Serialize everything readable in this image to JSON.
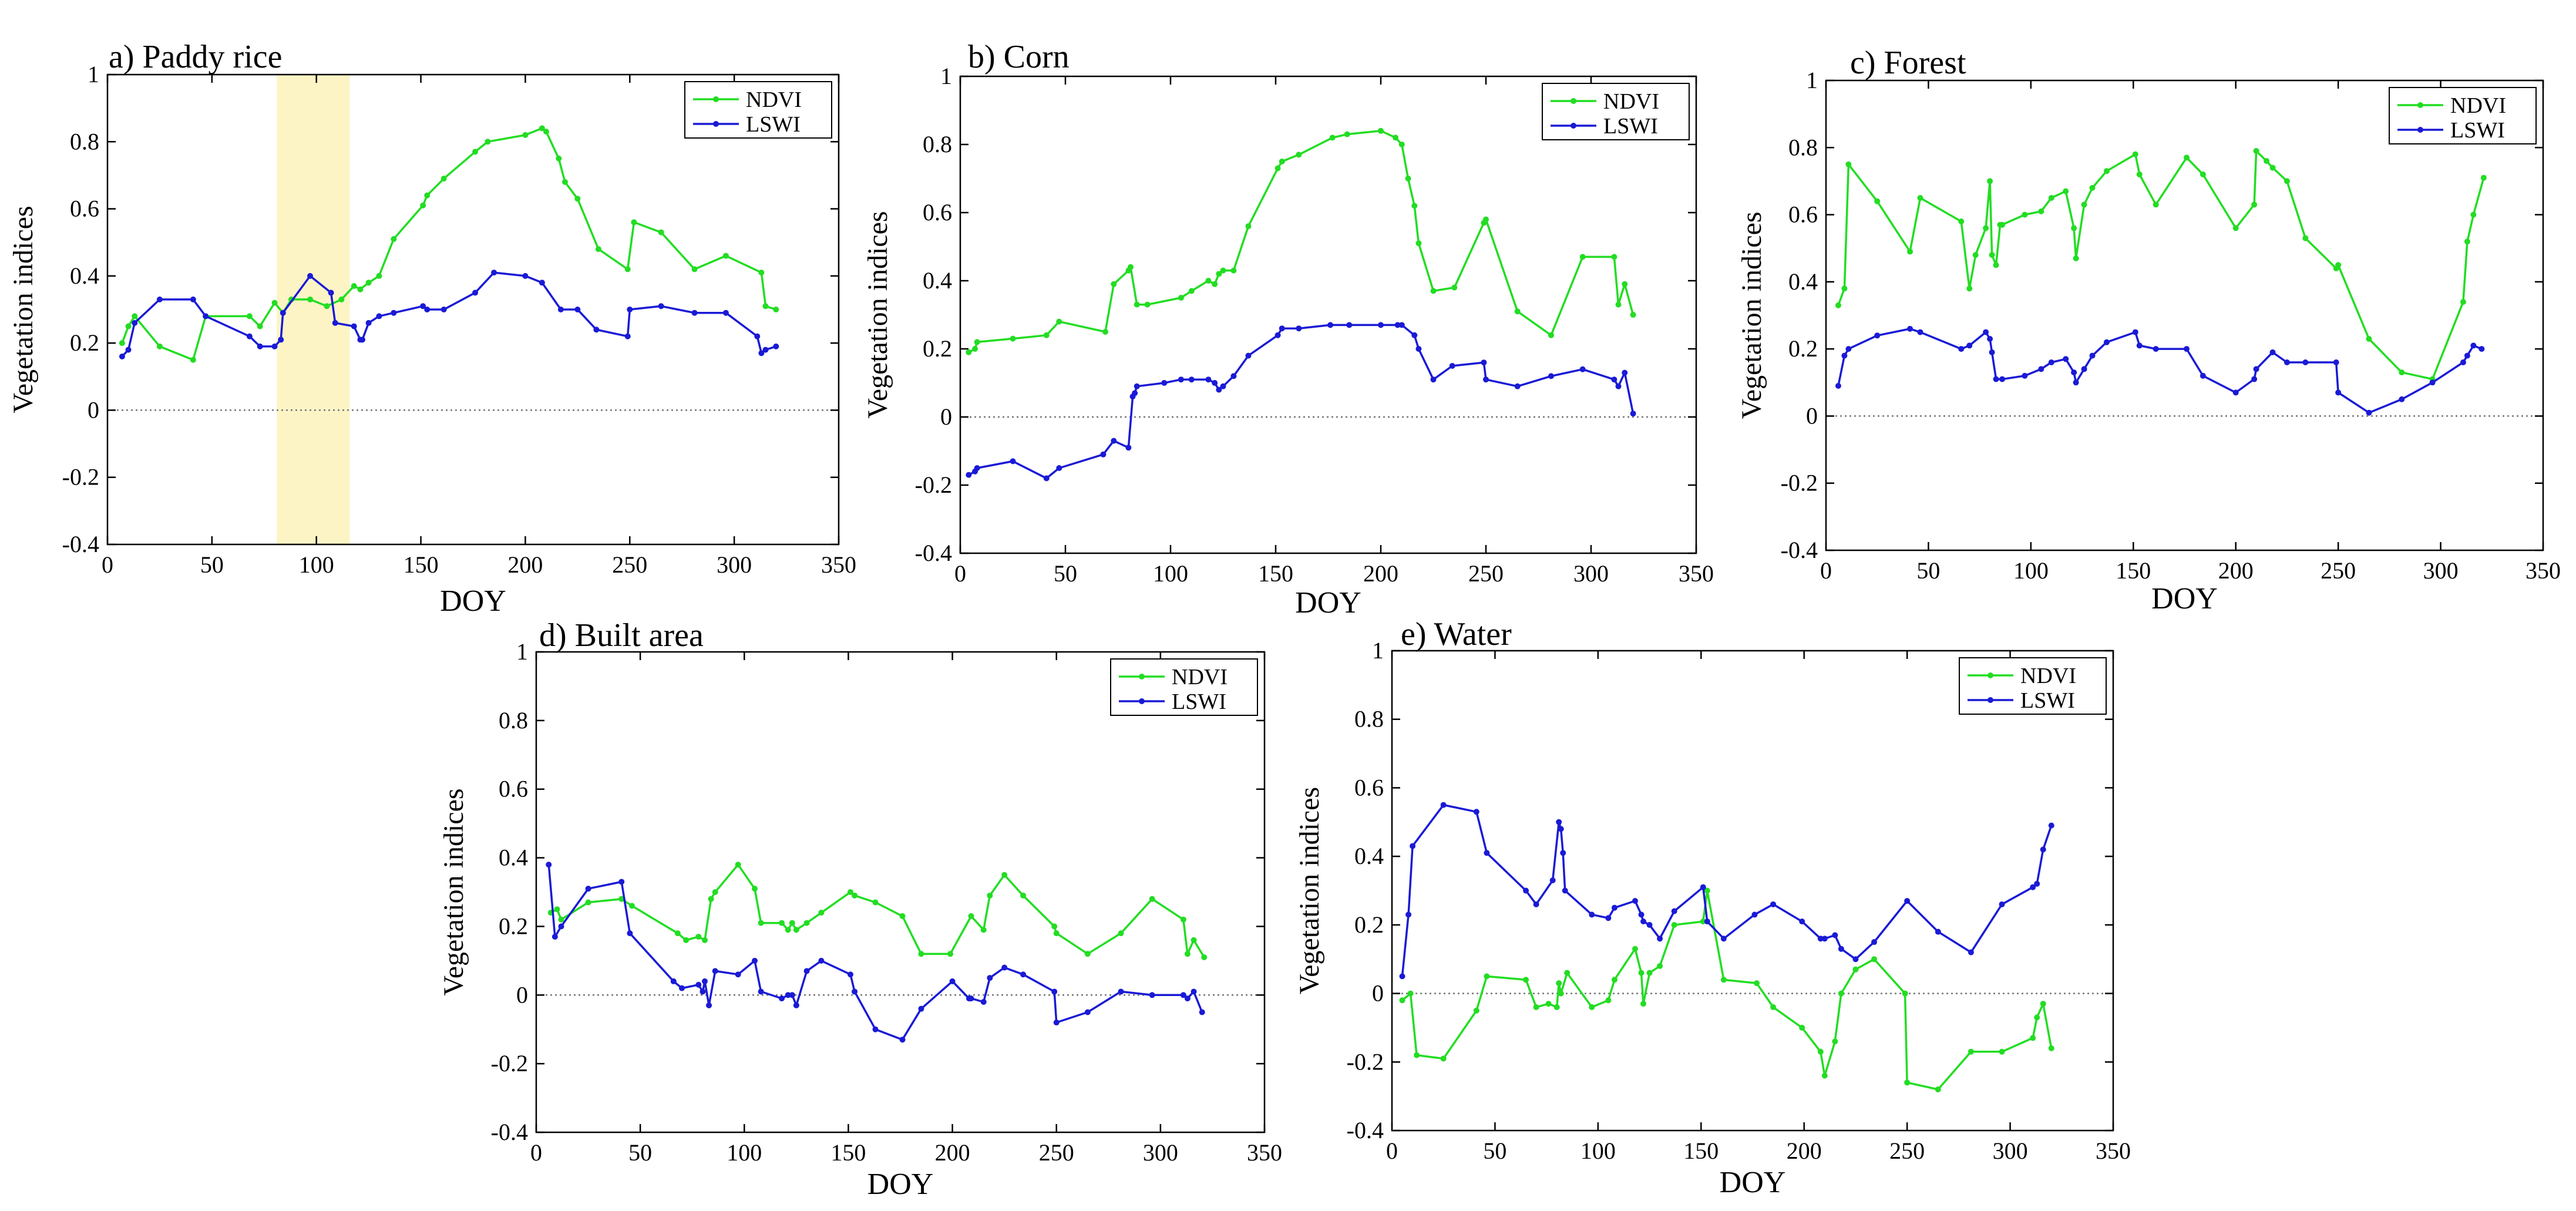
{
  "figure": {
    "colors": {
      "ndvi": "#22dd22",
      "lswi": "#1a1ad6",
      "shade": "#fdf4c6",
      "zero": "#777777"
    }
  },
  "chart_data": [
    {
      "id": "a",
      "type": "line",
      "title": "a) Paddy rice",
      "xlabel": "DOY",
      "ylabel": "Vegetation indices",
      "xlim": [
        0,
        350
      ],
      "ylim": [
        -0.4,
        1
      ],
      "xticks": [
        "0",
        "50",
        "100",
        "150",
        "200",
        "250",
        "300",
        "350"
      ],
      "yticks": [
        "-0.4",
        "-0.2",
        "0",
        "0.2",
        "0.4",
        "0.6",
        "0.8",
        "1"
      ],
      "legend": [
        "NDVI",
        "LSWI"
      ],
      "legend_position": "top-right",
      "highlight_x_range": [
        81,
        116
      ],
      "series": [
        {
          "name": "NDVI",
          "x": [
            7,
            10,
            13,
            25,
            41,
            47,
            68,
            73,
            80,
            84,
            88,
            97,
            105,
            112,
            118,
            121,
            125,
            130,
            137,
            151,
            153,
            161,
            176,
            182,
            200,
            208,
            210,
            216,
            219,
            225,
            235,
            249,
            252,
            265,
            281,
            296,
            313,
            315,
            320
          ],
          "y": [
            0.2,
            0.25,
            0.28,
            0.19,
            0.15,
            0.28,
            0.28,
            0.25,
            0.32,
            0.29,
            0.33,
            0.33,
            0.31,
            0.33,
            0.37,
            0.36,
            0.38,
            0.4,
            0.51,
            0.61,
            0.64,
            0.69,
            0.77,
            0.8,
            0.82,
            0.84,
            0.83,
            0.75,
            0.68,
            0.63,
            0.48,
            0.42,
            0.56,
            0.53,
            0.42,
            0.46,
            0.41,
            0.31,
            0.3
          ]
        },
        {
          "name": "LSWI",
          "x": [
            7,
            10,
            13,
            25,
            41,
            47,
            68,
            73,
            80,
            83,
            84,
            97,
            107,
            109,
            118,
            121,
            122,
            125,
            130,
            137,
            151,
            153,
            161,
            176,
            185,
            200,
            208,
            217,
            225,
            234,
            249,
            250,
            265,
            281,
            296,
            311,
            313,
            315,
            320
          ],
          "y": [
            0.16,
            0.18,
            0.26,
            0.33,
            0.33,
            0.28,
            0.22,
            0.19,
            0.19,
            0.21,
            0.29,
            0.4,
            0.35,
            0.26,
            0.25,
            0.21,
            0.21,
            0.26,
            0.28,
            0.29,
            0.31,
            0.3,
            0.3,
            0.35,
            0.41,
            0.4,
            0.38,
            0.3,
            0.3,
            0.24,
            0.22,
            0.3,
            0.31,
            0.29,
            0.29,
            0.22,
            0.17,
            0.18,
            0.19
          ]
        }
      ]
    },
    {
      "id": "b",
      "type": "line",
      "title": "b) Corn",
      "xlabel": "DOY",
      "ylabel": "Vegetation indices",
      "xlim": [
        0,
        350
      ],
      "ylim": [
        -0.4,
        1
      ],
      "xticks": [
        "0",
        "50",
        "100",
        "150",
        "200",
        "250",
        "300",
        "350"
      ],
      "yticks": [
        "-0.4",
        "-0.2",
        "0",
        "0.2",
        "0.4",
        "0.6",
        "0.8",
        "1"
      ],
      "legend": [
        "NDVI",
        "LSWI"
      ],
      "legend_position": "top-right",
      "series": [
        {
          "name": "NDVI",
          "x": [
            4,
            7,
            8,
            25,
            41,
            47,
            69,
            73,
            80,
            81,
            84,
            89,
            105,
            110,
            118,
            121,
            123,
            125,
            130,
            137,
            151,
            153,
            161,
            177,
            184,
            200,
            207,
            210,
            213,
            216,
            218,
            225,
            235,
            249,
            250,
            265,
            281,
            296,
            311,
            313,
            316,
            320
          ],
          "y": [
            0.19,
            0.2,
            0.22,
            0.23,
            0.24,
            0.28,
            0.25,
            0.39,
            0.43,
            0.44,
            0.33,
            0.33,
            0.35,
            0.37,
            0.4,
            0.39,
            0.42,
            0.43,
            0.43,
            0.56,
            0.73,
            0.75,
            0.77,
            0.82,
            0.83,
            0.84,
            0.82,
            0.8,
            0.7,
            0.62,
            0.51,
            0.37,
            0.38,
            0.57,
            0.58,
            0.31,
            0.24,
            0.47,
            0.47,
            0.33,
            0.39,
            0.3
          ]
        },
        {
          "name": "LSWI",
          "x": [
            4,
            7,
            8,
            25,
            41,
            47,
            68,
            73,
            80,
            82,
            83,
            84,
            97,
            105,
            110,
            118,
            121,
            123,
            125,
            130,
            137,
            151,
            153,
            161,
            176,
            185,
            200,
            208,
            210,
            216,
            218,
            225,
            234,
            249,
            250,
            265,
            281,
            296,
            311,
            313,
            316,
            320
          ],
          "y": [
            -0.17,
            -0.16,
            -0.15,
            -0.13,
            -0.18,
            -0.15,
            -0.11,
            -0.07,
            -0.09,
            0.06,
            0.07,
            0.09,
            0.1,
            0.11,
            0.11,
            0.11,
            0.1,
            0.08,
            0.09,
            0.12,
            0.18,
            0.24,
            0.26,
            0.26,
            0.27,
            0.27,
            0.27,
            0.27,
            0.27,
            0.24,
            0.2,
            0.11,
            0.15,
            0.16,
            0.11,
            0.09,
            0.12,
            0.14,
            0.11,
            0.09,
            0.13,
            0.01
          ]
        }
      ]
    },
    {
      "id": "c",
      "type": "line",
      "title": "c) Forest",
      "xlabel": "DOY",
      "ylabel": "Vegetation indices",
      "xlim": [
        0,
        350
      ],
      "ylim": [
        -0.4,
        1
      ],
      "xticks": [
        "0",
        "50",
        "100",
        "150",
        "200",
        "250",
        "300",
        "350"
      ],
      "yticks": [
        "-0.4",
        "-0.2",
        "0",
        "0.2",
        "0.4",
        "0.6",
        "0.8",
        "1"
      ],
      "legend": [
        "NDVI",
        "LSWI"
      ],
      "legend_position": "top-right",
      "series": [
        {
          "name": "NDVI",
          "x": [
            6,
            9,
            11,
            25,
            41,
            46,
            66,
            70,
            73,
            78,
            80,
            81,
            83,
            85,
            86,
            97,
            105,
            110,
            117,
            121,
            122,
            126,
            130,
            137,
            151,
            153,
            161,
            176,
            184,
            200,
            209,
            210,
            215,
            218,
            225,
            234,
            249,
            250,
            265,
            281,
            296,
            311,
            313,
            316,
            321
          ],
          "y": [
            0.33,
            0.38,
            0.75,
            0.64,
            0.49,
            0.65,
            0.58,
            0.38,
            0.48,
            0.56,
            0.7,
            0.48,
            0.45,
            0.57,
            0.57,
            0.6,
            0.61,
            0.65,
            0.67,
            0.56,
            0.47,
            0.63,
            0.68,
            0.73,
            0.78,
            0.72,
            0.63,
            0.77,
            0.72,
            0.56,
            0.63,
            0.79,
            0.76,
            0.74,
            0.7,
            0.53,
            0.44,
            0.45,
            0.23,
            0.13,
            0.11,
            0.34,
            0.52,
            0.6,
            0.71
          ]
        },
        {
          "name": "LSWI",
          "x": [
            6,
            9,
            11,
            25,
            41,
            46,
            66,
            70,
            78,
            80,
            81,
            83,
            86,
            97,
            105,
            110,
            117,
            121,
            122,
            126,
            130,
            137,
            151,
            153,
            161,
            176,
            184,
            200,
            209,
            210,
            218,
            225,
            234,
            249,
            250,
            265,
            281,
            296,
            311,
            313,
            316,
            320
          ],
          "y": [
            0.09,
            0.18,
            0.2,
            0.24,
            0.26,
            0.25,
            0.2,
            0.21,
            0.25,
            0.23,
            0.19,
            0.11,
            0.11,
            0.12,
            0.14,
            0.16,
            0.17,
            0.13,
            0.1,
            0.14,
            0.18,
            0.22,
            0.25,
            0.21,
            0.2,
            0.2,
            0.12,
            0.07,
            0.11,
            0.14,
            0.19,
            0.16,
            0.16,
            0.16,
            0.07,
            0.01,
            0.05,
            0.1,
            0.16,
            0.18,
            0.21,
            0.2
          ]
        }
      ]
    },
    {
      "id": "d",
      "type": "line",
      "title": "d) Built area",
      "xlabel": "DOY",
      "ylabel": "Vegetation indices",
      "xlim": [
        0,
        350
      ],
      "ylim": [
        -0.4,
        1
      ],
      "xticks": [
        "0",
        "50",
        "100",
        "150",
        "200",
        "250",
        "300",
        "350"
      ],
      "yticks": [
        "-0.4",
        "-0.2",
        "0",
        "0.2",
        "0.4",
        "0.6",
        "0.8",
        "1"
      ],
      "legend": [
        "NDVI",
        "LSWI"
      ],
      "legend_position": "top-right",
      "series": [
        {
          "name": "NDVI",
          "x": [
            7,
            10,
            12,
            25,
            41,
            46,
            68,
            72,
            78,
            81,
            84,
            86,
            97,
            105,
            108,
            118,
            121,
            123,
            125,
            130,
            137,
            151,
            153,
            163,
            176,
            185,
            199,
            209,
            215,
            218,
            225,
            234,
            249,
            250,
            265,
            281,
            296,
            311,
            313,
            316,
            321
          ],
          "y": [
            0.24,
            0.25,
            0.22,
            0.27,
            0.28,
            0.26,
            0.18,
            0.16,
            0.17,
            0.16,
            0.28,
            0.3,
            0.38,
            0.31,
            0.21,
            0.21,
            0.19,
            0.21,
            0.19,
            0.21,
            0.24,
            0.3,
            0.29,
            0.27,
            0.23,
            0.12,
            0.12,
            0.23,
            0.19,
            0.29,
            0.35,
            0.29,
            0.2,
            0.18,
            0.12,
            0.18,
            0.28,
            0.22,
            0.12,
            0.16,
            0.11
          ]
        },
        {
          "name": "LSWI",
          "x": [
            6,
            9,
            12,
            25,
            41,
            45,
            66,
            70,
            78,
            80,
            81,
            83,
            86,
            97,
            105,
            108,
            118,
            121,
            123,
            125,
            130,
            137,
            151,
            153,
            163,
            176,
            185,
            200,
            208,
            209,
            215,
            218,
            225,
            234,
            249,
            250,
            265,
            281,
            296,
            311,
            313,
            316,
            320
          ],
          "y": [
            0.38,
            0.17,
            0.2,
            0.31,
            0.33,
            0.18,
            0.04,
            0.02,
            0.03,
            0.01,
            0.04,
            -0.03,
            0.07,
            0.06,
            0.1,
            0.01,
            -0.01,
            0.0,
            0.0,
            -0.03,
            0.07,
            0.1,
            0.06,
            0.01,
            -0.1,
            -0.13,
            -0.04,
            0.04,
            -0.01,
            -0.01,
            -0.02,
            0.05,
            0.08,
            0.06,
            0.01,
            -0.08,
            -0.05,
            0.01,
            0.0,
            0.0,
            -0.01,
            0.01,
            -0.05
          ]
        }
      ]
    },
    {
      "id": "e",
      "type": "line",
      "title": "e) Water",
      "xlabel": "DOY",
      "ylabel": "Vegetation indices",
      "xlim": [
        0,
        350
      ],
      "ylim": [
        -0.4,
        1
      ],
      "xticks": [
        "0",
        "50",
        "100",
        "150",
        "200",
        "250",
        "300",
        "350"
      ],
      "yticks": [
        "-0.4",
        "-0.2",
        "0",
        "0.2",
        "0.4",
        "0.6",
        "0.8",
        "1"
      ],
      "legend": [
        "NDVI",
        "LSWI"
      ],
      "legend_position": "top-right",
      "series": [
        {
          "name": "NDVI",
          "x": [
            5,
            9,
            12,
            25,
            41,
            46,
            65,
            70,
            76,
            80,
            81,
            82,
            85,
            97,
            105,
            108,
            118,
            121,
            122,
            125,
            130,
            137,
            151,
            153,
            161,
            177,
            185,
            199,
            208,
            210,
            215,
            218,
            225,
            234,
            249,
            250,
            265,
            281,
            296,
            311,
            313,
            316,
            320
          ],
          "y": [
            -0.02,
            0.0,
            -0.18,
            -0.19,
            -0.05,
            0.05,
            0.04,
            -0.04,
            -0.03,
            -0.04,
            0.03,
            0.0,
            0.06,
            -0.04,
            -0.02,
            0.04,
            0.13,
            0.06,
            -0.03,
            0.06,
            0.08,
            0.2,
            0.21,
            0.3,
            0.04,
            0.03,
            -0.04,
            -0.1,
            -0.17,
            -0.24,
            -0.14,
            0.0,
            0.07,
            0.1,
            0.0,
            -0.26,
            -0.28,
            -0.17,
            -0.17,
            -0.13,
            -0.07,
            -0.03,
            -0.16
          ]
        },
        {
          "name": "LSWI",
          "x": [
            5,
            8,
            10,
            25,
            41,
            46,
            65,
            70,
            78,
            81,
            82,
            83,
            84,
            97,
            105,
            108,
            118,
            121,
            122,
            125,
            130,
            137,
            151,
            153,
            161,
            176,
            185,
            199,
            208,
            210,
            215,
            218,
            225,
            234,
            250,
            265,
            281,
            296,
            311,
            313,
            316,
            320
          ],
          "y": [
            0.05,
            0.23,
            0.43,
            0.55,
            0.53,
            0.41,
            0.3,
            0.26,
            0.33,
            0.5,
            0.48,
            0.41,
            0.3,
            0.23,
            0.22,
            0.25,
            0.27,
            0.23,
            0.21,
            0.2,
            0.16,
            0.24,
            0.31,
            0.21,
            0.16,
            0.23,
            0.26,
            0.21,
            0.16,
            0.16,
            0.17,
            0.13,
            0.1,
            0.15,
            0.27,
            0.18,
            0.12,
            0.26,
            0.31,
            0.32,
            0.42,
            0.49
          ]
        }
      ]
    }
  ]
}
